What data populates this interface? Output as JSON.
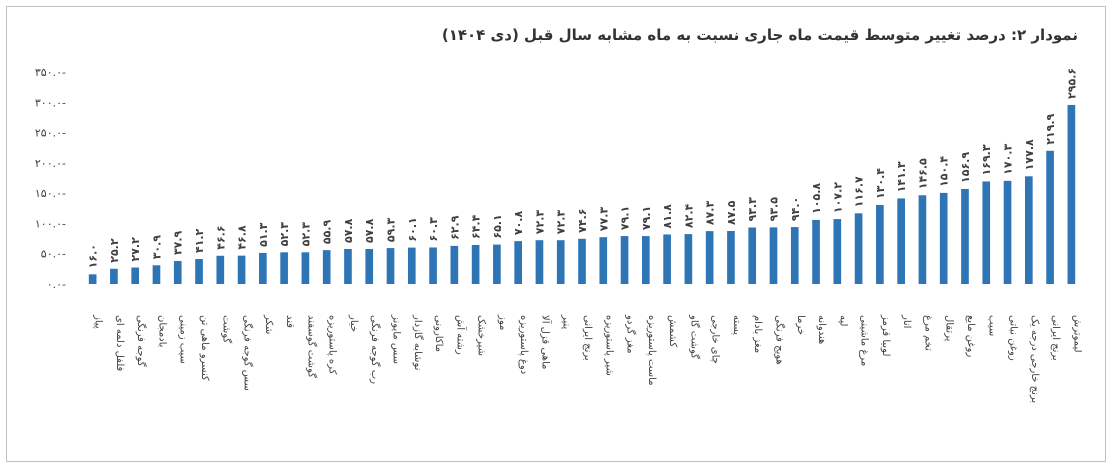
{
  "chart_data": {
    "type": "bar",
    "title": "نمودار ۲: درصد تغییر متوسط قیمت ماه جاری نسبت به ماه مشابه سال قبل (دی ۱۴۰۴)",
    "xlabel": "",
    "ylabel": "",
    "ylim": [
      0,
      350
    ],
    "yticks": [
      0,
      50,
      100,
      150,
      200,
      250,
      300,
      350
    ],
    "ytick_labels": [
      "۰.۰-",
      "۵۰.۰-",
      "۱۰۰.۰-",
      "۱۵۰.۰-",
      "۲۰۰.۰-",
      "۲۵۰.۰-",
      "۳۰۰.۰-",
      "۳۵۰.۰-"
    ],
    "grid": false,
    "color": "#2e75b6",
    "categories": [
      "پیاز",
      "فلفل دلمه ای",
      "گوجه فرنگی",
      "بادمجان",
      "سیب زمینی",
      "کنسرو ماهی تن",
      "گوشت",
      "سس گوجه فرنگی",
      "شکر",
      "قند",
      "گوشت گوسفند",
      "کره پاستوریزه",
      "خیار",
      "رب گوجه فرنگی",
      "سس مایونز",
      "نوشابه گازدار",
      "ماکارونی",
      "رشته آش",
      "شیرخشک",
      "موز",
      "دوغ پاستوریزه",
      "ماهی قزل آلا",
      "پنیر",
      "برنج ایرانی",
      "شیر پاستوریزه",
      "مغز گردو",
      "ماست پاستوریزه",
      "کشمش",
      "گوشت گاو",
      "چای خارجی",
      "پسته",
      "مغز بادام",
      "هویج فرنگی",
      "خرما",
      "هندوانه",
      "لپه",
      "مرغ ماشینی",
      "لوبیا قرمز",
      "انار",
      "تخم مرغ",
      "پرتقال",
      "روغن مایع",
      "سیب",
      "روغن نباتی",
      "برنج خارجی درجه یک",
      "برنج ایرانی",
      "لیموترش"
    ],
    "values": [
      16.0,
      25.2,
      27.2,
      30.9,
      37.9,
      41.2,
      46.6,
      46.8,
      51.3,
      52.3,
      52.3,
      55.9,
      57.8,
      57.8,
      59.3,
      60.1,
      60.3,
      62.9,
      64.4,
      65.1,
      70.8,
      72.3,
      72.3,
      74.6,
      77.3,
      79.1,
      79.1,
      81.8,
      82.4,
      87.3,
      87.5,
      93.3,
      93.5,
      94.0,
      105.8,
      107.2,
      116.7,
      130.4,
      141.3,
      146.5,
      150.4,
      156.9,
      169.3,
      170.3,
      177.8,
      219.9,
      295.6
    ],
    "value_labels": [
      "۱۶.۰",
      "۲۵.۲",
      "۲۷.۲",
      "۳۰.۹",
      "۳۷.۹",
      "۴۱.۲",
      "۴۶.۶",
      "۴۶.۸",
      "۵۱.۳",
      "۵۲.۳",
      "۵۲.۳",
      "۵۵.۹",
      "۵۷.۸",
      "۵۷.۸",
      "۵۹.۳",
      "۶۰.۱",
      "۶۰.۳",
      "۶۲.۹",
      "۶۴.۴",
      "۶۵.۱",
      "۷۰.۸",
      "۷۲.۳",
      "۷۲.۳",
      "۷۴.۶",
      "۷۷.۳",
      "۷۹.۱",
      "۷۹.۱",
      "۸۱.۸",
      "۸۲.۴",
      "۸۷.۳",
      "۸۷.۵",
      "۹۳.۳",
      "۹۳.۵",
      "۹۴.۰",
      "۱۰۵.۸",
      "۱۰۷.۲",
      "۱۱۶.۷",
      "۱۳۰.۴",
      "۱۴۱.۳",
      "۱۴۶.۵",
      "۱۵۰.۴",
      "۱۵۶.۹",
      "۱۶۹.۳",
      "۱۷۰.۳",
      "۱۷۷.۸",
      "۲۱۹.۹",
      "۲۹۵.۶"
    ]
  }
}
